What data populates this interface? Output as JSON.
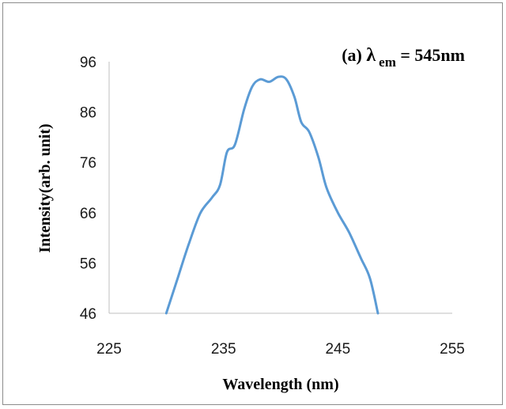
{
  "chart_data": {
    "type": "line",
    "annotation": {
      "prefix": "(a) ",
      "symbol": "λ",
      "subscript": "em",
      "suffix": " = 545nm"
    },
    "xlabel": "Wavelength (nm)",
    "ylabel": "Intensity(arb.  unit)",
    "xlim": [
      225,
      255
    ],
    "ylim": [
      46,
      96
    ],
    "x_ticks": [
      225,
      235,
      245,
      255
    ],
    "y_ticks": [
      46,
      56,
      66,
      76,
      86,
      96
    ],
    "grid": false,
    "legend": "none",
    "series": [
      {
        "color": "#5b9bd5",
        "x": [
          230.0,
          231.0,
          232.0,
          233.0,
          234.0,
          234.7,
          235.3,
          236.0,
          236.8,
          237.5,
          238.2,
          239.0,
          239.8,
          240.5,
          241.2,
          241.8,
          242.5,
          243.3,
          244.0,
          245.0,
          246.0,
          247.0,
          247.8,
          248.5
        ],
        "y": [
          46,
          53,
          60,
          66,
          69,
          71.5,
          78,
          79.5,
          86.5,
          91,
          92.5,
          92,
          93,
          92.5,
          89,
          84,
          82,
          77,
          71,
          66,
          62,
          57,
          53,
          46
        ]
      }
    ]
  }
}
